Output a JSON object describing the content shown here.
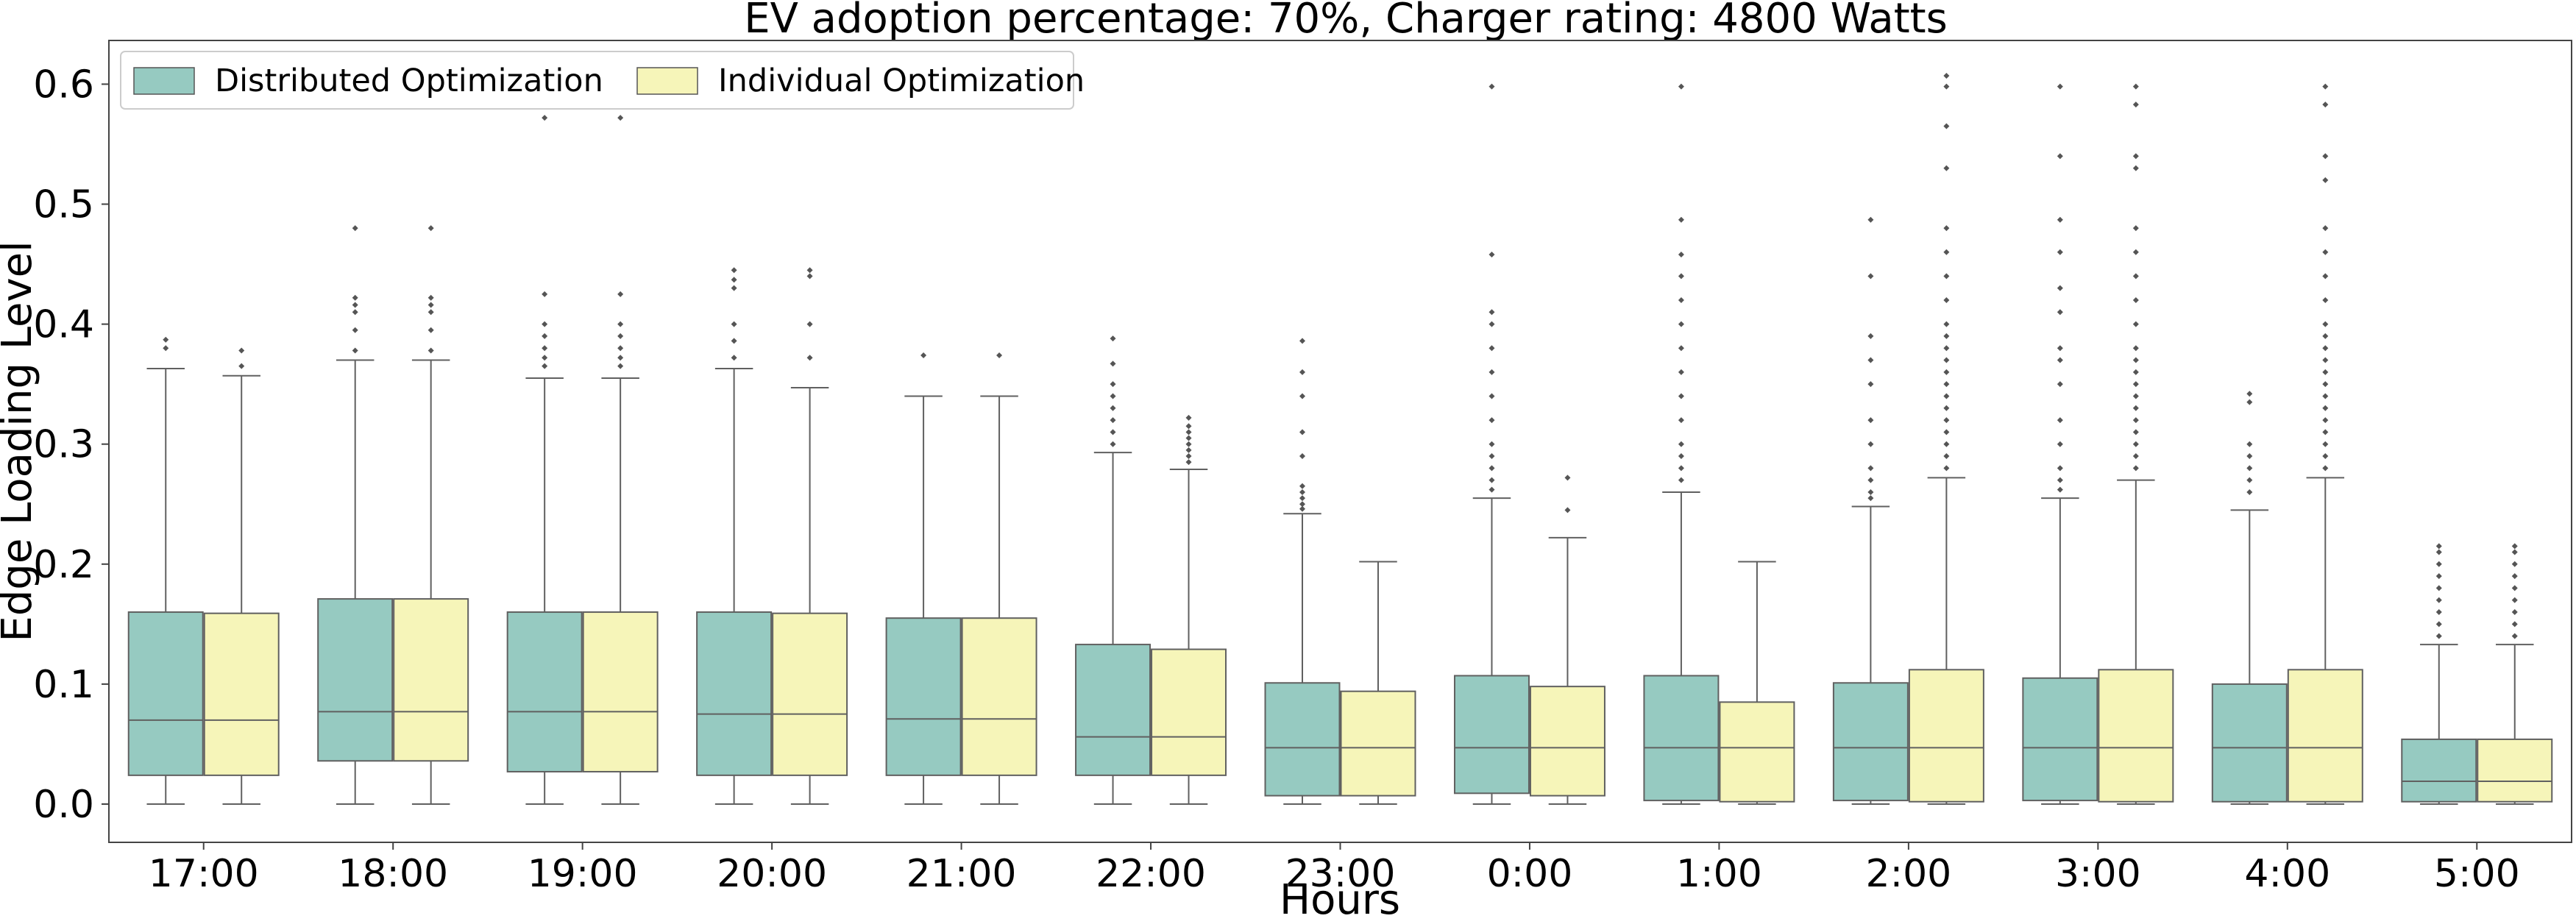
{
  "chart_data": {
    "type": "box",
    "title": "EV adoption percentage: 70%, Charger rating: 4800 Watts",
    "xlabel": "Hours",
    "ylabel": "Edge Loading Level",
    "ylim": [
      -0.03,
      0.635
    ],
    "yticks": [
      "0.0",
      "0.1",
      "0.2",
      "0.3",
      "0.4",
      "0.5",
      "0.6"
    ],
    "legend_position": "top-left",
    "grid": false,
    "categories": [
      "17:00",
      "18:00",
      "19:00",
      "20:00",
      "21:00",
      "22:00",
      "23:00",
      "0:00",
      "1:00",
      "2:00",
      "3:00",
      "4:00",
      "5:00"
    ],
    "series": [
      {
        "name": "Distributed Optimization",
        "color": "#96cac1",
        "boxes": [
          {
            "whislo": 0.0,
            "q1": 0.024,
            "med": 0.07,
            "q3": 0.16,
            "whishi": 0.363,
            "fliers": [
              0.38,
              0.387
            ]
          },
          {
            "whislo": 0.0,
            "q1": 0.036,
            "med": 0.077,
            "q3": 0.171,
            "whishi": 0.37,
            "fliers": [
              0.378,
              0.395,
              0.41,
              0.416,
              0.422,
              0.48
            ]
          },
          {
            "whislo": 0.0,
            "q1": 0.027,
            "med": 0.077,
            "q3": 0.16,
            "whishi": 0.355,
            "fliers": [
              0.365,
              0.372,
              0.38,
              0.39,
              0.4,
              0.425,
              0.572,
              0.595
            ]
          },
          {
            "whislo": 0.0,
            "q1": 0.024,
            "med": 0.075,
            "q3": 0.16,
            "whishi": 0.363,
            "fliers": [
              0.372,
              0.386,
              0.4,
              0.43,
              0.437,
              0.445
            ]
          },
          {
            "whislo": 0.0,
            "q1": 0.024,
            "med": 0.071,
            "q3": 0.155,
            "whishi": 0.34,
            "fliers": [
              0.374
            ]
          },
          {
            "whislo": 0.0,
            "q1": 0.024,
            "med": 0.056,
            "q3": 0.133,
            "whishi": 0.293,
            "fliers": [
              0.3,
              0.31,
              0.32,
              0.33,
              0.34,
              0.35,
              0.367,
              0.388
            ]
          },
          {
            "whislo": 0.0,
            "q1": 0.007,
            "med": 0.047,
            "q3": 0.101,
            "whishi": 0.242,
            "fliers": [
              0.246,
              0.25,
              0.255,
              0.26,
              0.265,
              0.29,
              0.31,
              0.34,
              0.36,
              0.386
            ]
          },
          {
            "whislo": 0.0,
            "q1": 0.009,
            "med": 0.047,
            "q3": 0.107,
            "whishi": 0.255,
            "fliers": [
              0.262,
              0.27,
              0.28,
              0.29,
              0.3,
              0.32,
              0.34,
              0.36,
              0.38,
              0.4,
              0.41,
              0.458,
              0.598
            ]
          },
          {
            "whislo": 0.0,
            "q1": 0.003,
            "med": 0.047,
            "q3": 0.107,
            "whishi": 0.26,
            "fliers": [
              0.27,
              0.28,
              0.29,
              0.3,
              0.32,
              0.34,
              0.36,
              0.38,
              0.4,
              0.42,
              0.44,
              0.458,
              0.487,
              0.598
            ]
          },
          {
            "whislo": 0.0,
            "q1": 0.003,
            "med": 0.047,
            "q3": 0.101,
            "whishi": 0.248,
            "fliers": [
              0.255,
              0.26,
              0.27,
              0.28,
              0.3,
              0.32,
              0.35,
              0.37,
              0.39,
              0.44,
              0.487
            ]
          },
          {
            "whislo": 0.0,
            "q1": 0.003,
            "med": 0.047,
            "q3": 0.105,
            "whishi": 0.255,
            "fliers": [
              0.262,
              0.27,
              0.28,
              0.3,
              0.32,
              0.35,
              0.37,
              0.38,
              0.41,
              0.43,
              0.46,
              0.487,
              0.54,
              0.598
            ]
          },
          {
            "whislo": 0.0,
            "q1": 0.002,
            "med": 0.047,
            "q3": 0.1,
            "whishi": 0.245,
            "fliers": [
              0.26,
              0.27,
              0.28,
              0.29,
              0.3,
              0.335,
              0.342
            ]
          },
          {
            "whislo": 0.0,
            "q1": 0.002,
            "med": 0.019,
            "q3": 0.054,
            "whishi": 0.133,
            "fliers": [
              0.14,
              0.15,
              0.16,
              0.17,
              0.18,
              0.19,
              0.2,
              0.21,
              0.215
            ]
          }
        ]
      },
      {
        "name": "Individual Optimization",
        "color": "#f6f5b9",
        "boxes": [
          {
            "whislo": 0.0,
            "q1": 0.024,
            "med": 0.07,
            "q3": 0.159,
            "whishi": 0.357,
            "fliers": [
              0.365,
              0.378
            ]
          },
          {
            "whislo": 0.0,
            "q1": 0.036,
            "med": 0.077,
            "q3": 0.171,
            "whishi": 0.37,
            "fliers": [
              0.378,
              0.395,
              0.41,
              0.416,
              0.422,
              0.48
            ]
          },
          {
            "whislo": 0.0,
            "q1": 0.027,
            "med": 0.077,
            "q3": 0.16,
            "whishi": 0.355,
            "fliers": [
              0.365,
              0.372,
              0.38,
              0.39,
              0.4,
              0.425,
              0.572,
              0.595
            ]
          },
          {
            "whislo": 0.0,
            "q1": 0.024,
            "med": 0.075,
            "q3": 0.159,
            "whishi": 0.347,
            "fliers": [
              0.372,
              0.4,
              0.44,
              0.445
            ]
          },
          {
            "whislo": 0.0,
            "q1": 0.024,
            "med": 0.071,
            "q3": 0.155,
            "whishi": 0.34,
            "fliers": [
              0.374
            ]
          },
          {
            "whislo": 0.0,
            "q1": 0.024,
            "med": 0.056,
            "q3": 0.129,
            "whishi": 0.279,
            "fliers": [
              0.285,
              0.29,
              0.295,
              0.3,
              0.305,
              0.31,
              0.315,
              0.322
            ]
          },
          {
            "whislo": 0.0,
            "q1": 0.007,
            "med": 0.047,
            "q3": 0.094,
            "whishi": 0.202,
            "fliers": []
          },
          {
            "whislo": 0.0,
            "q1": 0.007,
            "med": 0.047,
            "q3": 0.098,
            "whishi": 0.222,
            "fliers": [
              0.245,
              0.272
            ]
          },
          {
            "whislo": 0.0,
            "q1": 0.002,
            "med": 0.047,
            "q3": 0.085,
            "whishi": 0.202,
            "fliers": []
          },
          {
            "whislo": 0.0,
            "q1": 0.002,
            "med": 0.047,
            "q3": 0.112,
            "whishi": 0.272,
            "fliers": [
              0.28,
              0.29,
              0.3,
              0.31,
              0.32,
              0.33,
              0.34,
              0.35,
              0.36,
              0.37,
              0.38,
              0.39,
              0.4,
              0.42,
              0.44,
              0.46,
              0.48,
              0.53,
              0.565,
              0.598,
              0.607
            ]
          },
          {
            "whislo": 0.0,
            "q1": 0.002,
            "med": 0.047,
            "q3": 0.112,
            "whishi": 0.27,
            "fliers": [
              0.28,
              0.29,
              0.3,
              0.31,
              0.32,
              0.33,
              0.34,
              0.35,
              0.36,
              0.37,
              0.38,
              0.4,
              0.42,
              0.44,
              0.46,
              0.48,
              0.53,
              0.54,
              0.583,
              0.598
            ]
          },
          {
            "whislo": 0.0,
            "q1": 0.002,
            "med": 0.047,
            "q3": 0.112,
            "whishi": 0.272,
            "fliers": [
              0.28,
              0.29,
              0.3,
              0.31,
              0.32,
              0.33,
              0.34,
              0.35,
              0.36,
              0.37,
              0.38,
              0.39,
              0.4,
              0.42,
              0.44,
              0.46,
              0.48,
              0.52,
              0.54,
              0.583,
              0.598
            ]
          },
          {
            "whislo": 0.0,
            "q1": 0.002,
            "med": 0.019,
            "q3": 0.054,
            "whishi": 0.133,
            "fliers": [
              0.14,
              0.15,
              0.16,
              0.17,
              0.18,
              0.19,
              0.2,
              0.21,
              0.215
            ]
          }
        ]
      }
    ]
  }
}
